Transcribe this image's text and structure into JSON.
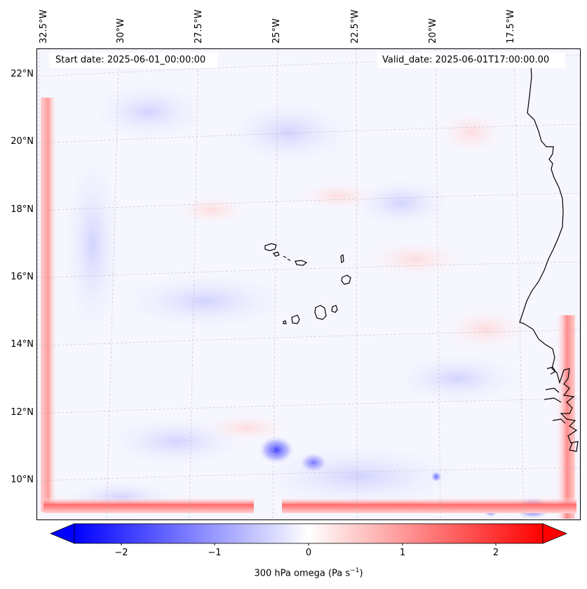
{
  "map": {
    "title": "",
    "variable": "300 hPa omega",
    "units": "Pa s",
    "units_exponent": "−1",
    "start_date": "Start date: 2025-06-01_00:00:00",
    "valid_date": "Valid_date: 2025-06-01T17:00:00.00",
    "lon_labels": [
      "32.5°W",
      "30°W",
      "27.5°W",
      "25°W",
      "22.5°W",
      "20°W",
      "17.5°W"
    ],
    "lat_labels": [
      "22°N",
      "20°N",
      "18°N",
      "16°N",
      "14°N",
      "12°N",
      "10°N"
    ],
    "features": [
      "coastline-africa",
      "cape-verde-islands"
    ],
    "colors": {
      "negative": "#0000ff",
      "zero": "#ffffff",
      "positive": "#ff0000",
      "coastline": "#000000",
      "gridline": "#bbbbbb"
    }
  },
  "colorbar": {
    "ticks": [
      "−2",
      "−1",
      "0",
      "1",
      "2"
    ],
    "tick_values": [
      -2,
      -1,
      0,
      1,
      2
    ],
    "range": [
      -2.5,
      2.5
    ],
    "extend": "both",
    "label_prefix": "300 hPa omega (Pa s",
    "label_exp": "−1",
    "label_suffix": ")"
  }
}
